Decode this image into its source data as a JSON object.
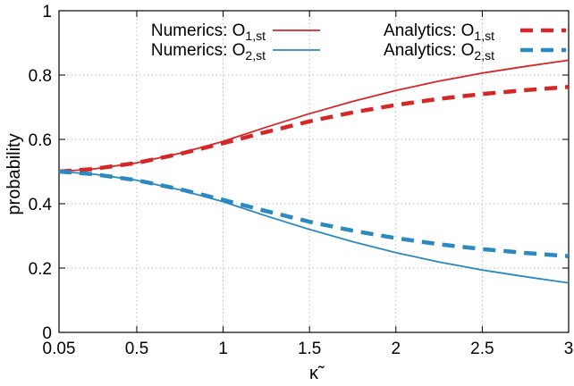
{
  "chart_data": {
    "type": "line",
    "xlabel": "κ̃",
    "ylabel": "probability",
    "xlim": [
      0.05,
      3
    ],
    "ylim": [
      0,
      1
    ],
    "x_ticks": [
      0.05,
      0.5,
      1,
      1.5,
      2,
      2.5,
      3
    ],
    "x_tick_labels": [
      "0.05",
      "0.5",
      "1",
      "1.5",
      "2",
      "2.5",
      "3"
    ],
    "y_ticks": [
      0,
      0.2,
      0.4,
      0.6,
      0.8,
      1
    ],
    "y_tick_labels": [
      "0",
      "0.2",
      "0.4",
      "0.6",
      "0.8",
      "1"
    ],
    "grid": true,
    "legend_placement": "top",
    "series": [
      {
        "name": "Numerics: O",
        "subscript": "1,st",
        "color": "#d62728",
        "style": "solid",
        "x": [
          0.05,
          0.25,
          0.5,
          0.75,
          1.0,
          1.25,
          1.5,
          1.75,
          2.0,
          2.25,
          2.5,
          2.75,
          3.0
        ],
        "y": [
          0.5,
          0.508,
          0.527,
          0.557,
          0.594,
          0.638,
          0.68,
          0.718,
          0.752,
          0.781,
          0.806,
          0.827,
          0.846
        ]
      },
      {
        "name": "Numerics: O",
        "subscript": "2,st",
        "color": "#2b88c0",
        "style": "solid",
        "x": [
          0.05,
          0.25,
          0.5,
          0.75,
          1.0,
          1.25,
          1.5,
          1.75,
          2.0,
          2.25,
          2.5,
          2.75,
          3.0
        ],
        "y": [
          0.5,
          0.492,
          0.473,
          0.443,
          0.406,
          0.362,
          0.32,
          0.282,
          0.248,
          0.219,
          0.194,
          0.173,
          0.154
        ]
      },
      {
        "name": "Analytics: O",
        "subscript": "1,st",
        "color": "#d62728",
        "style": "dashed",
        "x": [
          0.05,
          0.25,
          0.5,
          0.75,
          1.0,
          1.25,
          1.5,
          1.75,
          2.0,
          2.25,
          2.5,
          2.75,
          3.0
        ],
        "y": [
          0.5,
          0.508,
          0.527,
          0.555,
          0.588,
          0.623,
          0.656,
          0.684,
          0.707,
          0.726,
          0.741,
          0.753,
          0.763
        ]
      },
      {
        "name": "Analytics: O",
        "subscript": "2,st",
        "color": "#2b88c0",
        "style": "dashed",
        "x": [
          0.05,
          0.25,
          0.5,
          0.75,
          1.0,
          1.25,
          1.5,
          1.75,
          2.0,
          2.25,
          2.5,
          2.75,
          3.0
        ],
        "y": [
          0.5,
          0.492,
          0.473,
          0.445,
          0.412,
          0.377,
          0.344,
          0.316,
          0.293,
          0.274,
          0.259,
          0.247,
          0.237
        ]
      }
    ]
  }
}
